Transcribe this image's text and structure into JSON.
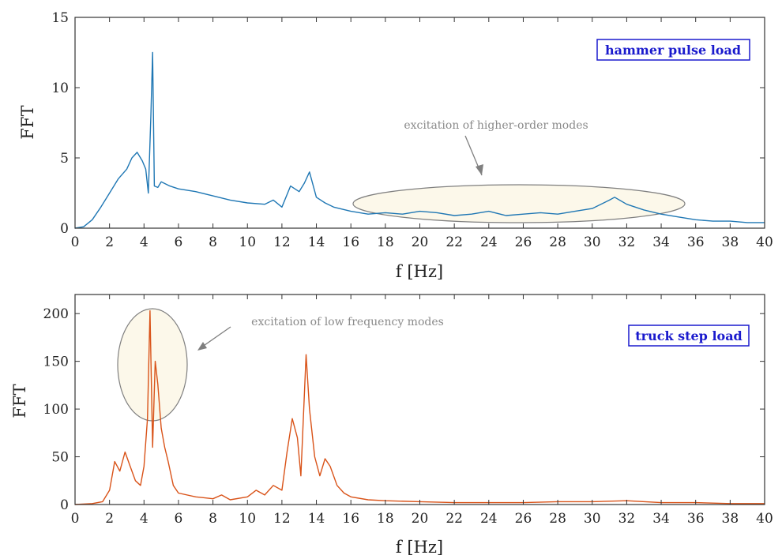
{
  "chart_data": [
    {
      "type": "line",
      "id": "top",
      "xlabel": "f [Hz]",
      "ylabel": "FFT",
      "xlim": [
        0,
        40
      ],
      "ylim": [
        0,
        15
      ],
      "xticks": [
        0,
        2,
        4,
        6,
        8,
        10,
        12,
        14,
        16,
        18,
        20,
        22,
        24,
        26,
        28,
        30,
        32,
        34,
        36,
        38,
        40
      ],
      "yticks": [
        0,
        5,
        10,
        15
      ],
      "grid": false,
      "legend_position": "top-right",
      "series": [
        {
          "name": "hammer pulse load",
          "color": "#1f77b4",
          "x": [
            0,
            0.5,
            1,
            1.5,
            2,
            2.5,
            3,
            3.3,
            3.6,
            3.9,
            4.1,
            4.25,
            4.4,
            4.5,
            4.6,
            4.8,
            5,
            5.5,
            6,
            7,
            8,
            9,
            10,
            11,
            11.5,
            12,
            12.5,
            13,
            13.3,
            13.6,
            14,
            14.5,
            15,
            16,
            17,
            18,
            19,
            20,
            21,
            22,
            23,
            24,
            25,
            26,
            27,
            28,
            29,
            30,
            31,
            31.3,
            32,
            33,
            34,
            35,
            36,
            37,
            38,
            39,
            40
          ],
          "y": [
            0,
            0.1,
            0.6,
            1.5,
            2.5,
            3.5,
            4.2,
            5.0,
            5.4,
            4.8,
            4.2,
            2.5,
            8.0,
            12.5,
            3.0,
            2.9,
            3.3,
            3.0,
            2.8,
            2.6,
            2.3,
            2.0,
            1.8,
            1.7,
            2.0,
            1.5,
            3.0,
            2.6,
            3.2,
            4.0,
            2.2,
            1.8,
            1.5,
            1.2,
            1.0,
            1.1,
            1.0,
            1.2,
            1.1,
            0.9,
            1.0,
            1.2,
            0.9,
            1.0,
            1.1,
            1.0,
            1.2,
            1.4,
            2.0,
            2.2,
            1.7,
            1.3,
            1.0,
            0.8,
            0.6,
            0.5,
            0.5,
            0.4,
            0.4
          ]
        }
      ],
      "annotations": [
        {
          "text": "excitation of higher-order modes",
          "ellipse_center": [
            25.9,
            1.5
          ]
        }
      ]
    },
    {
      "type": "line",
      "id": "bottom",
      "xlabel": "f [Hz]",
      "ylabel": "FFT",
      "xlim": [
        0,
        40
      ],
      "ylim": [
        0,
        220
      ],
      "xticks": [
        0,
        2,
        4,
        6,
        8,
        10,
        12,
        14,
        16,
        18,
        20,
        22,
        24,
        26,
        28,
        30,
        32,
        34,
        36,
        38,
        40
      ],
      "yticks": [
        0,
        50,
        100,
        150,
        200
      ],
      "grid": false,
      "legend_position": "top-right",
      "series": [
        {
          "name": "truck step load",
          "color": "#d95319",
          "x": [
            0,
            1,
            1.6,
            2,
            2.3,
            2.6,
            2.9,
            3.2,
            3.5,
            3.8,
            4.0,
            4.2,
            4.35,
            4.5,
            4.65,
            4.8,
            5.0,
            5.2,
            5.4,
            5.7,
            6,
            7,
            8,
            8.5,
            9,
            10,
            10.5,
            11,
            11.5,
            12,
            12.3,
            12.6,
            12.9,
            13.1,
            13.4,
            13.6,
            13.9,
            14.2,
            14.5,
            14.8,
            15.2,
            15.6,
            16,
            17,
            18,
            20,
            22,
            24,
            26,
            28,
            30,
            32,
            34,
            36,
            38,
            40
          ],
          "y": [
            0,
            1,
            3,
            15,
            45,
            35,
            55,
            40,
            25,
            20,
            40,
            90,
            203,
            60,
            150,
            126,
            80,
            60,
            45,
            20,
            12,
            8,
            6,
            10,
            5,
            8,
            15,
            10,
            20,
            15,
            55,
            90,
            70,
            30,
            157,
            100,
            50,
            30,
            48,
            40,
            20,
            12,
            8,
            5,
            4,
            3,
            2,
            2,
            2,
            3,
            3,
            4,
            2,
            2,
            1,
            1
          ]
        }
      ],
      "annotations": [
        {
          "text": "excitation of low frequency modes",
          "ellipse_center": [
            4.5,
            148
          ]
        }
      ]
    }
  ]
}
